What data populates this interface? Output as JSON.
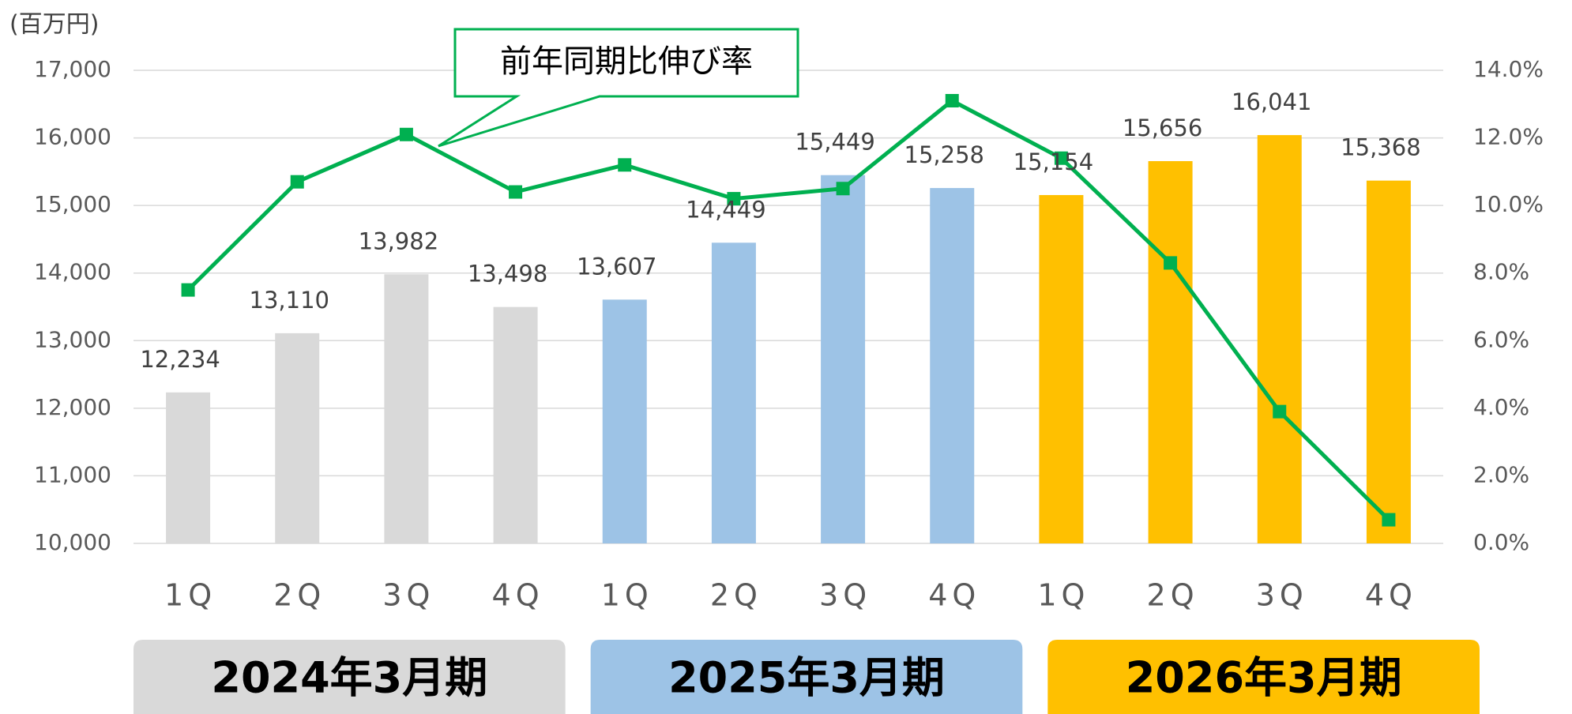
{
  "chart_data": {
    "type": "bar",
    "unit_label": "(百万円)",
    "categories": [
      "1Q",
      "2Q",
      "3Q",
      "4Q",
      "1Q",
      "2Q",
      "3Q",
      "4Q",
      "1Q",
      "2Q",
      "3Q",
      "4Q"
    ],
    "groups": [
      {
        "label": "2024年3月期",
        "color": "#d9d9d9"
      },
      {
        "label": "2025年3月期",
        "color": "#9dc3e6"
      },
      {
        "label": "2026年3月期",
        "color": "#ffc000"
      }
    ],
    "series": [
      {
        "type": "bar",
        "colors": [
          "#d9d9d9",
          "#d9d9d9",
          "#d9d9d9",
          "#d9d9d9",
          "#9dc3e6",
          "#9dc3e6",
          "#9dc3e6",
          "#9dc3e6",
          "#ffc000",
          "#ffc000",
          "#ffc000",
          "#ffc000"
        ],
        "values": [
          12234,
          13110,
          13982,
          13498,
          13607,
          14449,
          15449,
          15258,
          15154,
          15656,
          16041,
          15368
        ],
        "value_labels": [
          "12,234",
          "13,110",
          "13,982",
          "13,498",
          "13,607",
          "14,449",
          "15,449",
          "15,258",
          "15,154",
          "15,656",
          "16,041",
          "15,368"
        ]
      },
      {
        "type": "line",
        "name": "前年同期比伸び率",
        "color": "#00b050",
        "axis": "y2",
        "values": [
          7.5,
          10.7,
          12.1,
          10.4,
          11.2,
          10.2,
          10.5,
          13.1,
          11.4,
          8.3,
          3.9,
          0.7
        ]
      }
    ],
    "ylim": [
      10000,
      17000
    ],
    "yticks": [
      {
        "value": 10000,
        "label": "10,000"
      },
      {
        "value": 11000,
        "label": "11,000"
      },
      {
        "value": 12000,
        "label": "12,000"
      },
      {
        "value": 13000,
        "label": "13,000"
      },
      {
        "value": 14000,
        "label": "14,000"
      },
      {
        "value": 15000,
        "label": "15,000"
      },
      {
        "value": 16000,
        "label": "16,000"
      },
      {
        "value": 17000,
        "label": "17,000"
      }
    ],
    "y2lim": [
      0,
      14
    ],
    "y2ticks": [
      {
        "value": 0,
        "label": "0.0%"
      },
      {
        "value": 2,
        "label": "2.0%"
      },
      {
        "value": 4,
        "label": "4.0%"
      },
      {
        "value": 6,
        "label": "6.0%"
      },
      {
        "value": 8,
        "label": "8.0%"
      },
      {
        "value": 10,
        "label": "10.0%"
      },
      {
        "value": 12,
        "label": "12.0%"
      },
      {
        "value": 14,
        "label": "14.0%"
      }
    ],
    "grid": true
  }
}
